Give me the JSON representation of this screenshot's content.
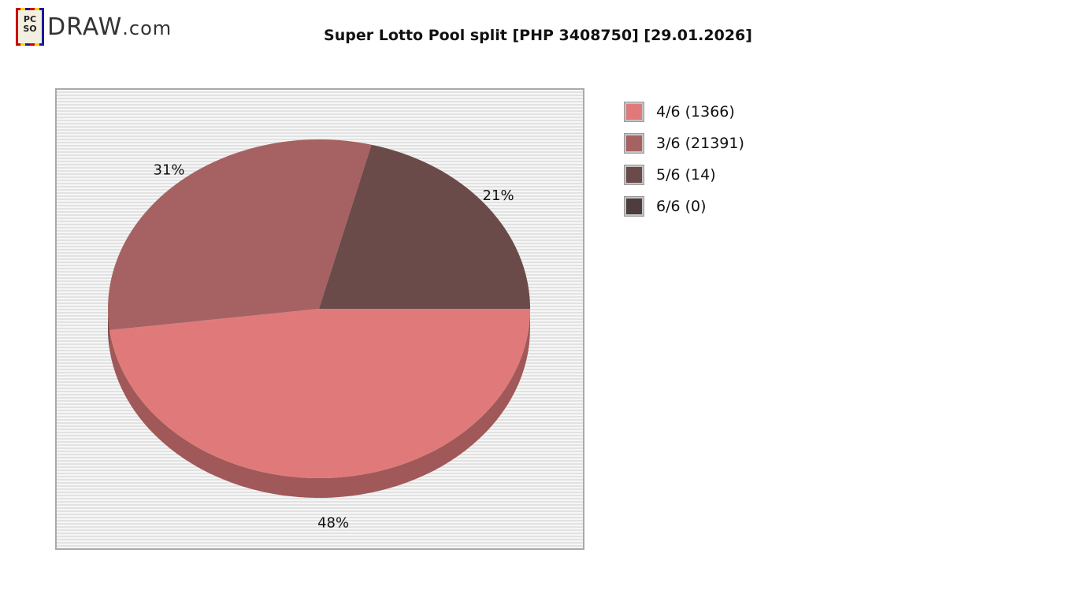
{
  "logo": {
    "badge_text": "PCSO",
    "text": "DRAW",
    "suffix": ".com"
  },
  "chart_data": {
    "type": "pie",
    "title": "Super Lotto Pool split [PHP 3408750] [29.01.2026]",
    "slices": [
      {
        "label": "4/6 (1366)",
        "percent": 48,
        "percent_label": "48%",
        "color": "#e07a7a"
      },
      {
        "label": "3/6 (21391)",
        "percent": 31,
        "percent_label": "31%",
        "color": "#a66262"
      },
      {
        "label": "5/6 (14)",
        "percent": 21,
        "percent_label": "21%",
        "color": "#6b4a4a"
      },
      {
        "label": "6/6 (0)",
        "percent": 0,
        "percent_label": "",
        "color": "#4e3d3d"
      }
    ],
    "legend_position": "right",
    "style": "3d"
  }
}
